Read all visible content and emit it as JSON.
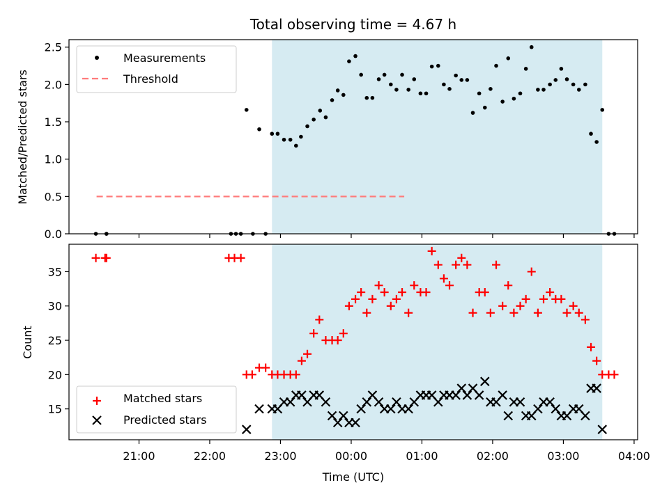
{
  "chart_data": {
    "title": "Total observing time = 4.67 h",
    "xlabel": "Time (UTC)",
    "x_tick_labels": [
      "21:00",
      "22:00",
      "23:00",
      "00:00",
      "01:00",
      "02:00",
      "03:00",
      "04:00"
    ],
    "x_unit": "hours after 21:00 UTC",
    "xlim": [
      -0.99,
      7.05
    ],
    "x_ticks": [
      0,
      1,
      2,
      3,
      4,
      5,
      6,
      7
    ],
    "observing_window": [
      1.88,
      6.55
    ],
    "colors": {
      "window": "#add8e6",
      "matched": "#ff0000",
      "predicted": "#000000",
      "threshold": "#ff7b7b"
    },
    "panels": [
      {
        "type": "scatter",
        "ylabel": "Matched/Predicted stars",
        "ylim": [
          0,
          2.6
        ],
        "y_ticks": [
          0.0,
          0.5,
          1.0,
          1.5,
          2.0,
          2.5
        ],
        "y_tick_labels": [
          "0.0",
          "0.5",
          "1.0",
          "1.5",
          "2.0",
          "2.5"
        ],
        "legend": {
          "placement": "upper-left",
          "entries": [
            "Measurements",
            "Threshold"
          ]
        },
        "threshold": {
          "name": "Threshold",
          "value": 0.5,
          "x_range": [
            -0.6,
            3.75
          ]
        },
        "series": [
          {
            "name": "Measurements",
            "marker": "dot",
            "points": [
              [
                -0.61,
                0
              ],
              [
                -0.46,
                0
              ],
              [
                -0.46,
                0
              ],
              [
                1.3,
                0
              ],
              [
                1.37,
                0
              ],
              [
                1.44,
                0
              ],
              [
                1.61,
                0
              ],
              [
                1.79,
                0
              ],
              [
                1.52,
                1.66
              ],
              [
                1.7,
                1.4
              ],
              [
                1.88,
                1.34
              ],
              [
                1.96,
                1.34
              ],
              [
                2.05,
                1.26
              ],
              [
                2.14,
                1.26
              ],
              [
                2.22,
                1.18
              ],
              [
                2.29,
                1.3
              ],
              [
                2.38,
                1.44
              ],
              [
                2.47,
                1.53
              ],
              [
                2.56,
                1.65
              ],
              [
                2.64,
                1.56
              ],
              [
                2.73,
                1.79
              ],
              [
                2.81,
                1.92
              ],
              [
                2.89,
                1.86
              ],
              [
                2.97,
                2.31
              ],
              [
                3.06,
                2.38
              ],
              [
                3.14,
                2.13
              ],
              [
                3.22,
                1.82
              ],
              [
                3.3,
                1.82
              ],
              [
                3.39,
                2.07
              ],
              [
                3.47,
                2.13
              ],
              [
                3.56,
                2.0
              ],
              [
                3.64,
                1.93
              ],
              [
                3.72,
                2.13
              ],
              [
                3.81,
                1.93
              ],
              [
                3.89,
                2.07
              ],
              [
                3.98,
                1.88
              ],
              [
                4.06,
                1.88
              ],
              [
                4.14,
                2.24
              ],
              [
                4.23,
                2.25
              ],
              [
                4.31,
                2.0
              ],
              [
                4.39,
                1.94
              ],
              [
                4.48,
                2.12
              ],
              [
                4.56,
                2.06
              ],
              [
                4.64,
                2.06
              ],
              [
                4.72,
                1.62
              ],
              [
                4.81,
                1.88
              ],
              [
                4.89,
                1.69
              ],
              [
                4.97,
                1.94
              ],
              [
                5.05,
                2.25
              ],
              [
                5.14,
                1.77
              ],
              [
                5.22,
                2.35
              ],
              [
                5.3,
                1.81
              ],
              [
                5.39,
                1.88
              ],
              [
                5.47,
                2.21
              ],
              [
                5.55,
                2.5
              ],
              [
                5.64,
                1.93
              ],
              [
                5.72,
                1.93
              ],
              [
                5.81,
                2.0
              ],
              [
                5.89,
                2.06
              ],
              [
                5.97,
                2.21
              ],
              [
                6.05,
                2.07
              ],
              [
                6.14,
                2.0
              ],
              [
                6.22,
                1.93
              ],
              [
                6.31,
                2.0
              ],
              [
                6.39,
                1.34
              ],
              [
                6.47,
                1.23
              ],
              [
                6.55,
                1.66
              ],
              [
                6.64,
                0
              ],
              [
                6.72,
                0
              ]
            ]
          }
        ]
      },
      {
        "type": "scatter",
        "ylabel": "Count",
        "ylim": [
          10.5,
          39.0
        ],
        "y_ticks": [
          15,
          20,
          25,
          30,
          35
        ],
        "y_tick_labels": [
          "15",
          "20",
          "25",
          "30",
          "35"
        ],
        "legend": {
          "placement": "lower-left",
          "entries": [
            "Matched stars",
            "Predicted stars"
          ]
        },
        "series": [
          {
            "name": "Matched stars",
            "marker": "plus",
            "points": [
              [
                -0.61,
                37
              ],
              [
                -0.48,
                37
              ],
              [
                -0.46,
                37
              ],
              [
                1.27,
                37
              ],
              [
                1.35,
                37
              ],
              [
                1.44,
                37
              ],
              [
                1.52,
                20
              ],
              [
                1.6,
                20
              ],
              [
                1.7,
                21
              ],
              [
                1.79,
                21
              ],
              [
                1.88,
                20
              ],
              [
                1.96,
                20
              ],
              [
                2.05,
                20
              ],
              [
                2.14,
                20
              ],
              [
                2.22,
                20
              ],
              [
                2.3,
                22
              ],
              [
                2.38,
                23
              ],
              [
                2.47,
                26
              ],
              [
                2.55,
                28
              ],
              [
                2.64,
                25
              ],
              [
                2.73,
                25
              ],
              [
                2.81,
                25
              ],
              [
                2.89,
                26
              ],
              [
                2.97,
                30
              ],
              [
                3.06,
                31
              ],
              [
                3.14,
                32
              ],
              [
                3.22,
                29
              ],
              [
                3.3,
                31
              ],
              [
                3.39,
                33
              ],
              [
                3.47,
                32
              ],
              [
                3.56,
                30
              ],
              [
                3.64,
                31
              ],
              [
                3.72,
                32
              ],
              [
                3.81,
                29
              ],
              [
                3.89,
                33
              ],
              [
                3.98,
                32
              ],
              [
                4.06,
                32
              ],
              [
                4.14,
                38
              ],
              [
                4.23,
                36
              ],
              [
                4.31,
                34
              ],
              [
                4.39,
                33
              ],
              [
                4.48,
                36
              ],
              [
                4.56,
                37
              ],
              [
                4.64,
                36
              ],
              [
                4.72,
                29
              ],
              [
                4.81,
                32
              ],
              [
                4.89,
                32
              ],
              [
                4.97,
                29
              ],
              [
                5.05,
                36
              ],
              [
                5.14,
                30
              ],
              [
                5.22,
                33
              ],
              [
                5.3,
                29
              ],
              [
                5.39,
                30
              ],
              [
                5.47,
                31
              ],
              [
                5.55,
                35
              ],
              [
                5.64,
                29
              ],
              [
                5.72,
                31
              ],
              [
                5.81,
                32
              ],
              [
                5.89,
                31
              ],
              [
                5.97,
                31
              ],
              [
                6.05,
                29
              ],
              [
                6.14,
                30
              ],
              [
                6.22,
                29
              ],
              [
                6.31,
                28
              ],
              [
                6.39,
                24
              ],
              [
                6.47,
                22
              ],
              [
                6.55,
                20
              ],
              [
                6.64,
                20
              ],
              [
                6.72,
                20
              ]
            ]
          },
          {
            "name": "Predicted stars",
            "marker": "x",
            "points": [
              [
                1.52,
                12
              ],
              [
                1.7,
                15
              ],
              [
                1.88,
                15
              ],
              [
                1.96,
                15
              ],
              [
                2.05,
                16
              ],
              [
                2.14,
                16
              ],
              [
                2.22,
                17
              ],
              [
                2.3,
                17
              ],
              [
                2.38,
                16
              ],
              [
                2.47,
                17
              ],
              [
                2.55,
                17
              ],
              [
                2.64,
                16
              ],
              [
                2.73,
                14
              ],
              [
                2.81,
                13
              ],
              [
                2.89,
                14
              ],
              [
                2.97,
                13
              ],
              [
                3.06,
                13
              ],
              [
                3.14,
                15
              ],
              [
                3.22,
                16
              ],
              [
                3.3,
                17
              ],
              [
                3.39,
                16
              ],
              [
                3.47,
                15
              ],
              [
                3.56,
                15
              ],
              [
                3.64,
                16
              ],
              [
                3.72,
                15
              ],
              [
                3.81,
                15
              ],
              [
                3.89,
                16
              ],
              [
                3.98,
                17
              ],
              [
                4.06,
                17
              ],
              [
                4.14,
                17
              ],
              [
                4.23,
                16
              ],
              [
                4.31,
                17
              ],
              [
                4.39,
                17
              ],
              [
                4.48,
                17
              ],
              [
                4.56,
                18
              ],
              [
                4.64,
                17
              ],
              [
                4.72,
                18
              ],
              [
                4.81,
                17
              ],
              [
                4.89,
                19
              ],
              [
                4.97,
                16
              ],
              [
                5.05,
                16
              ],
              [
                5.14,
                17
              ],
              [
                5.22,
                14
              ],
              [
                5.3,
                16
              ],
              [
                5.39,
                16
              ],
              [
                5.47,
                14
              ],
              [
                5.55,
                14
              ],
              [
                5.64,
                15
              ],
              [
                5.72,
                16
              ],
              [
                5.81,
                16
              ],
              [
                5.89,
                15
              ],
              [
                5.97,
                14
              ],
              [
                6.05,
                14
              ],
              [
                6.14,
                15
              ],
              [
                6.22,
                15
              ],
              [
                6.31,
                14
              ],
              [
                6.39,
                18
              ],
              [
                6.47,
                18
              ],
              [
                6.55,
                12
              ]
            ]
          }
        ]
      }
    ]
  }
}
